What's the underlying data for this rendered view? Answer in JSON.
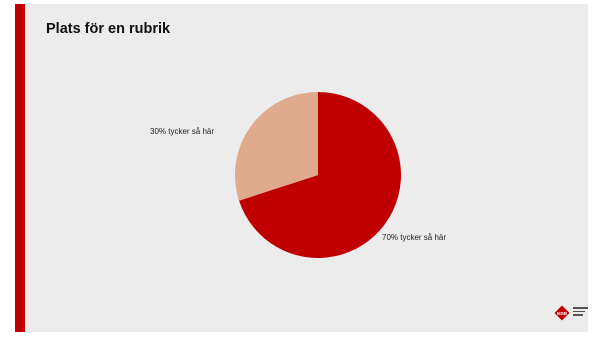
{
  "slide": {
    "title": "Plats för en rubrik",
    "accent_color": "#c00000",
    "background_color": "#ececec"
  },
  "logo": {
    "text": "MSB",
    "color": "#c00000"
  },
  "chart_data": {
    "type": "pie",
    "title": "",
    "slices": [
      {
        "label": "70% tycker så här",
        "value": 70,
        "color": "#c00000"
      },
      {
        "label": "30% tycker så här",
        "value": 30,
        "color": "#dfab8c"
      }
    ]
  }
}
